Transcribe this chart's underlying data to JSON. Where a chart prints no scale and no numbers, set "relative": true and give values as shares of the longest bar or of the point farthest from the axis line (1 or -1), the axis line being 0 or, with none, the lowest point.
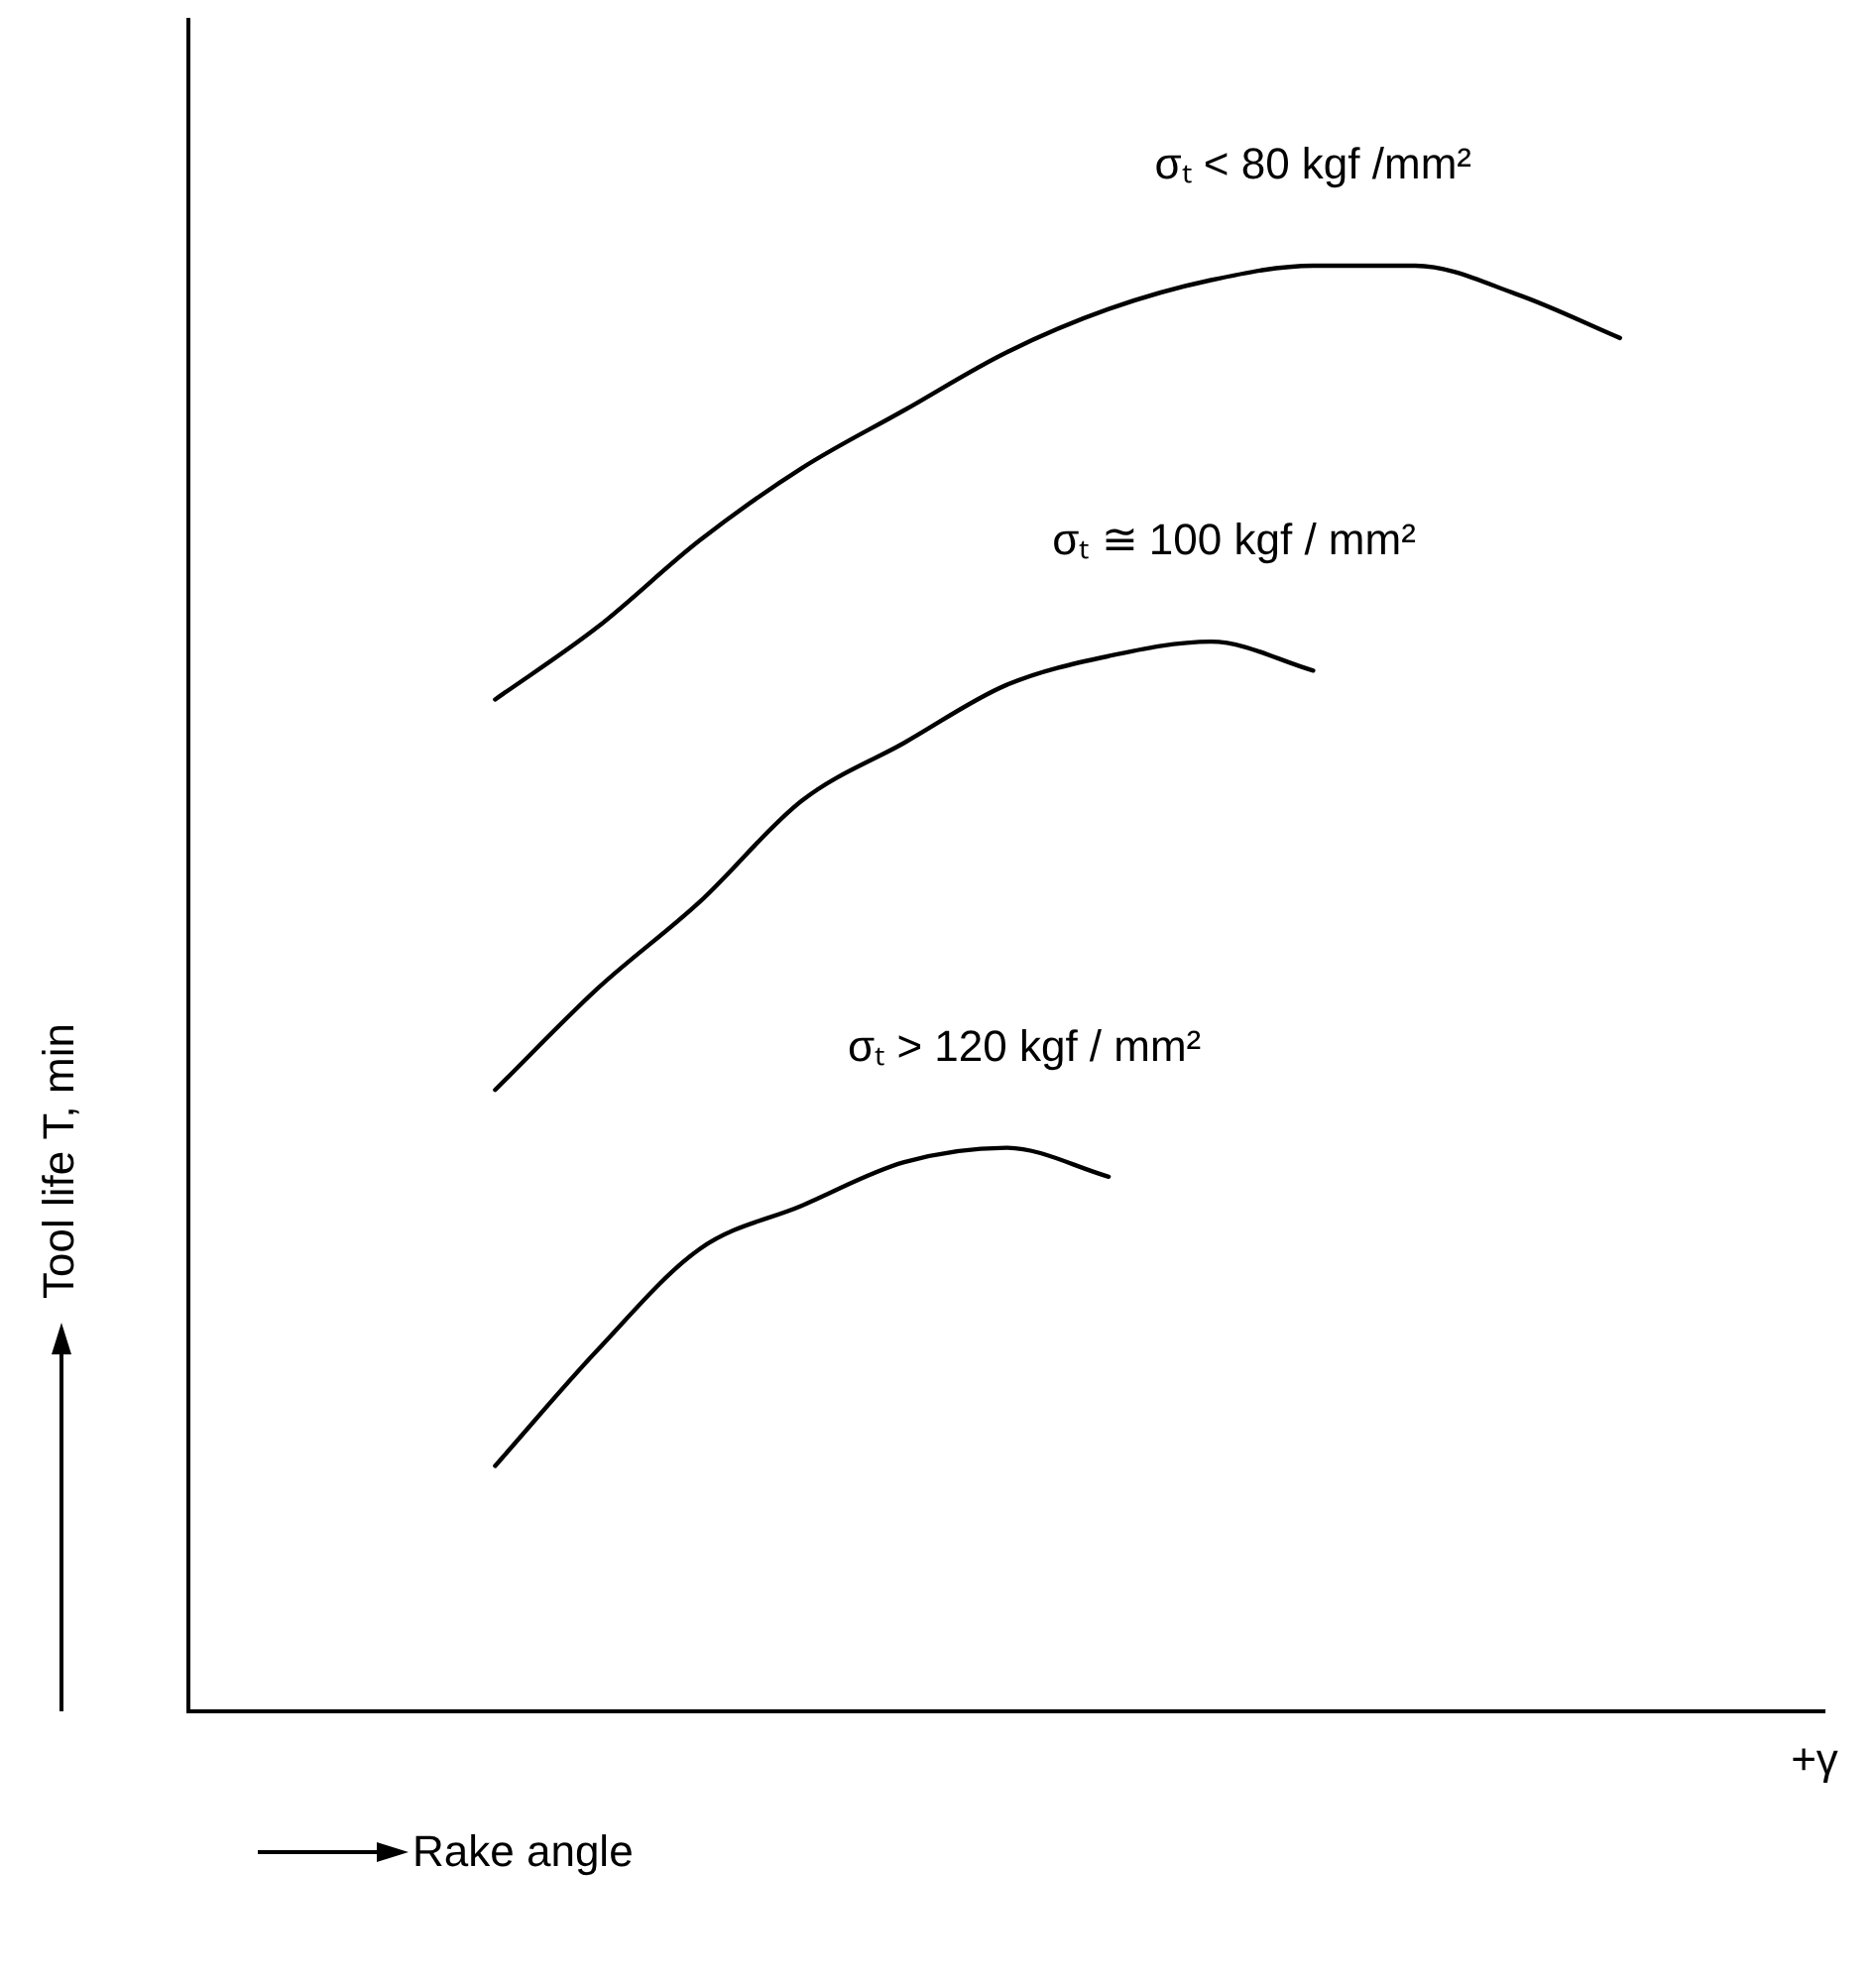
{
  "chart_data": {
    "type": "line",
    "relative": true,
    "xlabel": "Rake angle",
    "ylabel": "Tool life T, min",
    "annotations": [
      "+γ"
    ],
    "legend": false,
    "grid": false,
    "marker": "none",
    "line_style": "solid",
    "categories": [
      null,
      null,
      null,
      null,
      null,
      null,
      null,
      null,
      null,
      null,
      null,
      null,
      null,
      null,
      null,
      null,
      null
    ],
    "series": [
      {
        "name": "σₜ < 80 kgf /mm²",
        "color": "#000000",
        "values": [
          null,
          null,
          null,
          0.7,
          0.75,
          0.81,
          0.86,
          0.9,
          0.94,
          0.97,
          0.99,
          1.0,
          1.0,
          0.98,
          0.95,
          null,
          null
        ]
      },
      {
        "name": "σₜ ≅ 100 kgf / mm²",
        "color": "#000000",
        "values": [
          null,
          null,
          null,
          0.43,
          0.5,
          0.56,
          0.63,
          0.67,
          0.71,
          0.73,
          0.74,
          0.72,
          null,
          null,
          null,
          null,
          null
        ]
      },
      {
        "name": "σₜ > 120 kgf / mm²",
        "color": "#000000",
        "values": [
          null,
          null,
          null,
          0.17,
          0.25,
          0.32,
          0.35,
          0.38,
          0.39,
          0.37,
          null,
          null,
          null,
          null,
          null,
          null,
          null
        ]
      }
    ]
  }
}
